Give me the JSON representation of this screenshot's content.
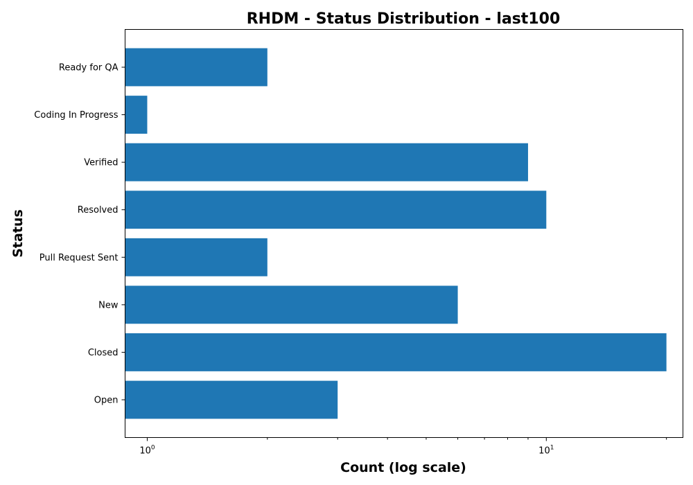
{
  "chart_data": {
    "type": "bar",
    "orientation": "horizontal",
    "title": "RHDM - Status Distribution - last100",
    "xlabel": "Count (log scale)",
    "ylabel": "Status",
    "x_scale": "log",
    "categories": [
      "Open",
      "Closed",
      "New",
      "Pull Request Sent",
      "Resolved",
      "Verified",
      "Coding In Progress",
      "Ready for QA"
    ],
    "values": [
      3,
      20,
      6,
      2,
      10,
      9,
      1,
      2
    ],
    "xlim": [
      0.88,
      22
    ],
    "x_ticks": [
      {
        "value": 1,
        "base": "10",
        "exp": "0"
      },
      {
        "value": 10,
        "base": "10",
        "exp": "1"
      }
    ],
    "bar_color": "#1f77b4",
    "grid": false,
    "legend": "none"
  }
}
